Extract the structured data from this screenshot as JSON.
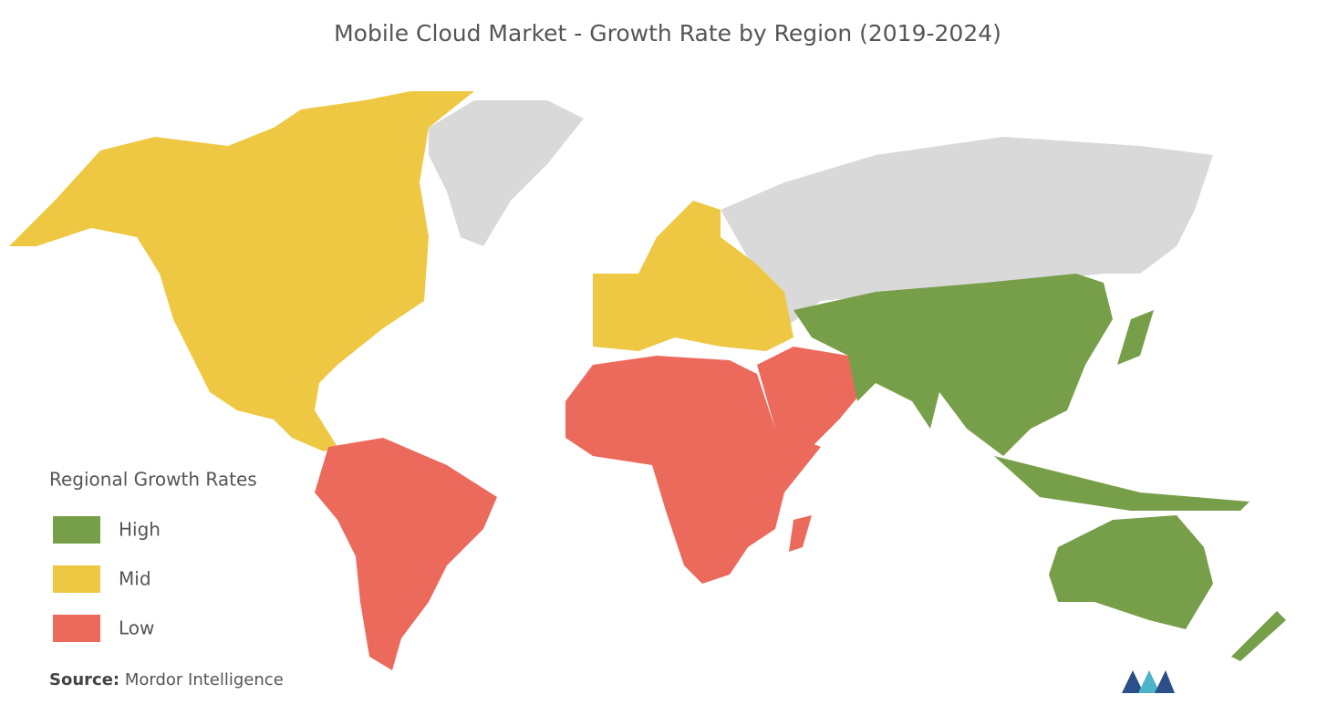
{
  "title": "Mobile Cloud Market - Growth Rate by Region (2019-2024)",
  "legend": {
    "title": "Regional Growth Rates",
    "items": [
      {
        "label": "High",
        "color": "#779e48"
      },
      {
        "label": "Mid",
        "color": "#eec843"
      },
      {
        "label": "Low",
        "color": "#ec6a5c"
      }
    ]
  },
  "source": {
    "label": "Source:",
    "text": "Mordor Intelligence"
  }
}
